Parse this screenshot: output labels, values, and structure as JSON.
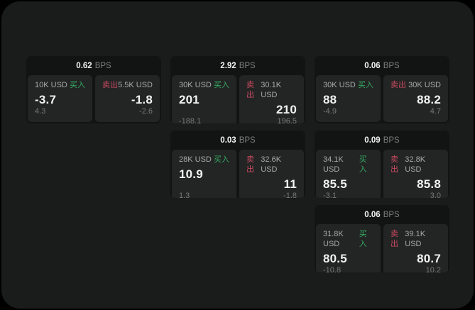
{
  "labels": {
    "buy": "买入",
    "sell": "卖出",
    "bps_unit": "BPS"
  },
  "colors": {
    "surface": "#1a1b1b",
    "card": "#121313",
    "panel": "#232424",
    "buy": "#35ac63",
    "sell": "#c94a5f",
    "text-bright": "#f1f2f2",
    "text-label": "#a8aaaa",
    "text-muted": "#767879",
    "text-dim": "#7c7e7e"
  },
  "cards": [
    {
      "bps": "0.62",
      "buy": {
        "amount": "10K USD",
        "value": "-3.7",
        "delta": "4.3"
      },
      "sell": {
        "amount": "5.5K USD",
        "value": "-1.8",
        "delta": "-2.6"
      }
    },
    {
      "bps": "2.92",
      "buy": {
        "amount": "30K USD",
        "value": "201",
        "delta": "-188.1"
      },
      "sell": {
        "amount": "30.1K USD",
        "value": "210",
        "delta": "196.5"
      }
    },
    {
      "bps": "0.06",
      "buy": {
        "amount": "30K USD",
        "value": "88",
        "delta": "-4.9"
      },
      "sell": {
        "amount": "30K USD",
        "value": "88.2",
        "delta": "4.7"
      }
    },
    {
      "bps": "0.03",
      "buy": {
        "amount": "28K USD",
        "value": "10.9",
        "delta": "1.3"
      },
      "sell": {
        "amount": "32.6K USD",
        "value": "11",
        "delta": "-1.8"
      }
    },
    {
      "bps": "0.09",
      "buy": {
        "amount": "34.1K USD",
        "value": "85.5",
        "delta": "-3.1"
      },
      "sell": {
        "amount": "32.8K USD",
        "value": "85.8",
        "delta": "3.0"
      }
    },
    {
      "bps": "0.06",
      "buy": {
        "amount": "31.8K USD",
        "value": "80.5",
        "delta": "-10.8"
      },
      "sell": {
        "amount": "39.1K USD",
        "value": "80.7",
        "delta": "10.2"
      }
    }
  ]
}
